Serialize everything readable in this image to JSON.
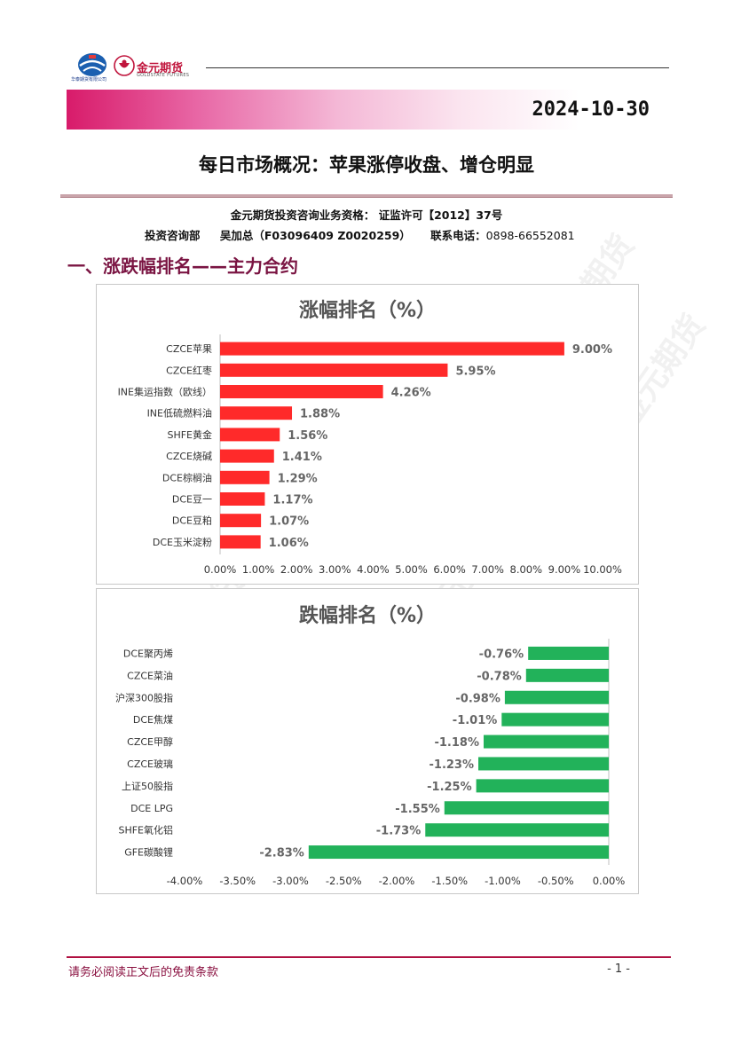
{
  "header": {
    "logo1_caption": "华泰期货有限公司",
    "logo_name": "金元期货",
    "logo_subtitle": "GOLDSTATE FUTURES",
    "date": "2024-10-30"
  },
  "document": {
    "title": "每日市场概况：苹果涨停收盘、增仓明显",
    "qualification": "金元期货投资咨询业务资格： 证监许可【2012】37号",
    "department": "投资咨询部",
    "analyst": "吴加总（F03096409 Z0020259）",
    "contact_label": "联系电话：",
    "contact_phone": "0898-66552081",
    "section_title": "一、涨跌幅排名——主力合约"
  },
  "watermark": "金元期货",
  "chart_data": [
    {
      "type": "bar",
      "orientation": "horizontal",
      "title": "涨幅排名（%）",
      "color": "#ff2a2a",
      "categories": [
        "CZCE苹果",
        "CZCE红枣",
        "INE集运指数（欧线）",
        "INE低硫燃料油",
        "SHFE黄金",
        "CZCE烧碱",
        "DCE棕榈油",
        "DCE豆一",
        "DCE豆粕",
        "DCE玉米淀粉"
      ],
      "values": [
        9.0,
        5.95,
        4.26,
        1.88,
        1.56,
        1.41,
        1.29,
        1.17,
        1.07,
        1.06
      ],
      "value_labels": [
        "9.00%",
        "5.95%",
        "4.26%",
        "1.88%",
        "1.56%",
        "1.41%",
        "1.29%",
        "1.17%",
        "1.07%",
        "1.06%"
      ],
      "xlim": [
        0,
        10
      ],
      "ticks": [
        "0.00%",
        "1.00%",
        "2.00%",
        "3.00%",
        "4.00%",
        "5.00%",
        "6.00%",
        "7.00%",
        "8.00%",
        "9.00%",
        "10.00%"
      ],
      "grid": false,
      "legend": "none"
    },
    {
      "type": "bar",
      "orientation": "horizontal",
      "title": "跌幅排名（%）",
      "color": "#22b25a",
      "categories": [
        "DCE聚丙烯",
        "CZCE菜油",
        "沪深300股指",
        "DCE焦煤",
        "CZCE甲醇",
        "CZCE玻璃",
        "上证50股指",
        "DCE LPG",
        "SHFE氧化铝",
        "GFE碳酸锂"
      ],
      "values": [
        -0.76,
        -0.78,
        -0.98,
        -1.01,
        -1.18,
        -1.23,
        -1.25,
        -1.55,
        -1.73,
        -2.83
      ],
      "value_labels": [
        "-0.76%",
        "-0.78%",
        "-0.98%",
        "-1.01%",
        "-1.18%",
        "-1.23%",
        "-1.25%",
        "-1.55%",
        "-1.73%",
        "-2.83%"
      ],
      "xlim": [
        -4,
        0
      ],
      "ticks": [
        "-4.00%",
        "-3.50%",
        "-3.00%",
        "-2.50%",
        "-2.00%",
        "-1.50%",
        "-1.00%",
        "-0.50%",
        "0.00%"
      ],
      "grid": false,
      "legend": "none"
    }
  ],
  "footer": {
    "disclaimer": "请务必阅读正文后的免责条款",
    "page": "- 1 -"
  }
}
